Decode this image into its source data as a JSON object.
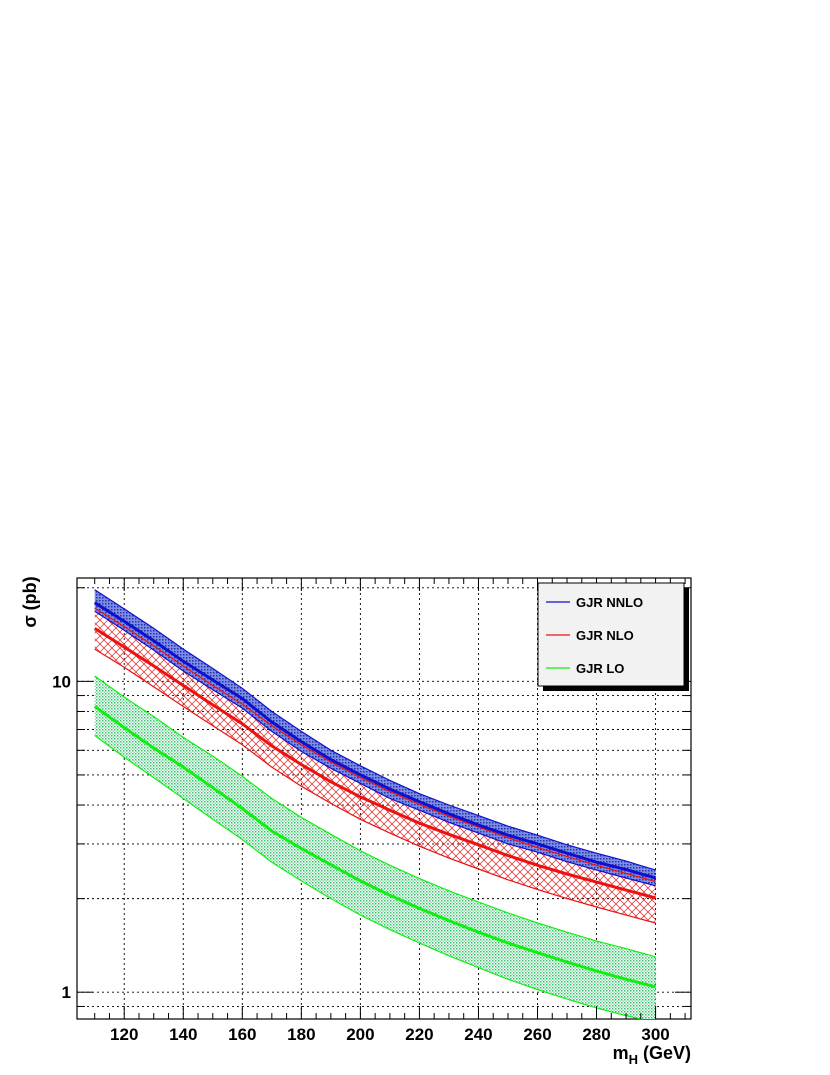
{
  "chart_data": {
    "type": "line",
    "xlabel": "m_H (GeV)",
    "xlabel_main": "m",
    "xlabel_sub": "H",
    "xlabel_suffix": " (GeV)",
    "ylabel": "σ (pb)",
    "xlim": [
      104,
      312
    ],
    "ylim": [
      0.82,
      21.5
    ],
    "yscale": "log",
    "grid": true,
    "legend_position": "top-right",
    "x_ticks": [
      120,
      140,
      160,
      180,
      200,
      220,
      240,
      260,
      280,
      300
    ],
    "y_ticks": [
      1,
      10
    ],
    "x": [
      110,
      120,
      130,
      140,
      150,
      160,
      170,
      180,
      190,
      200,
      210,
      220,
      230,
      240,
      250,
      260,
      270,
      280,
      290,
      300
    ],
    "series": [
      {
        "name": "GJR NNLO",
        "color": "#1010cc",
        "fill": "#3a50d8",
        "band_style": "dense",
        "central": [
          17.9,
          15.6,
          13.5,
          11.6,
          10.1,
          8.8,
          7.4,
          6.4,
          5.6,
          5.0,
          4.5,
          4.1,
          3.75,
          3.45,
          3.2,
          3.0,
          2.8,
          2.62,
          2.48,
          2.33
        ],
        "upper": [
          19.7,
          17.1,
          14.8,
          12.7,
          11.0,
          9.5,
          8.0,
          6.9,
          6.0,
          5.35,
          4.8,
          4.35,
          4.0,
          3.7,
          3.42,
          3.2,
          2.98,
          2.8,
          2.64,
          2.47
        ],
        "lower": [
          16.8,
          14.6,
          12.6,
          10.8,
          9.4,
          8.2,
          6.9,
          5.95,
          5.25,
          4.7,
          4.2,
          3.85,
          3.52,
          3.25,
          3.0,
          2.82,
          2.63,
          2.47,
          2.33,
          2.2
        ]
      },
      {
        "name": "GJR NLO",
        "color": "#ee1111",
        "fill": "#ee4444",
        "band_style": "hatch",
        "central": [
          14.8,
          12.9,
          11.2,
          9.7,
          8.4,
          7.3,
          6.2,
          5.4,
          4.75,
          4.25,
          3.85,
          3.5,
          3.22,
          2.98,
          2.75,
          2.56,
          2.4,
          2.26,
          2.13,
          2.01
        ],
        "upper": [
          17.2,
          15.0,
          13.0,
          11.2,
          9.7,
          8.45,
          7.2,
          6.25,
          5.5,
          4.9,
          4.42,
          4.02,
          3.68,
          3.4,
          3.14,
          2.92,
          2.73,
          2.56,
          2.41,
          2.27
        ],
        "lower": [
          12.7,
          11.1,
          9.6,
          8.3,
          7.2,
          6.25,
          5.3,
          4.6,
          4.05,
          3.6,
          3.25,
          2.95,
          2.7,
          2.49,
          2.3,
          2.14,
          2.0,
          1.88,
          1.77,
          1.67
        ]
      },
      {
        "name": "GJR LO",
        "color": "#11ee11",
        "fill": "#33cc66",
        "band_style": "dots",
        "central": [
          8.3,
          7.1,
          6.1,
          5.3,
          4.55,
          3.9,
          3.3,
          2.9,
          2.57,
          2.28,
          2.05,
          1.86,
          1.7,
          1.56,
          1.44,
          1.34,
          1.25,
          1.17,
          1.1,
          1.04
        ],
        "upper": [
          10.4,
          8.9,
          7.7,
          6.6,
          5.75,
          4.95,
          4.2,
          3.65,
          3.22,
          2.85,
          2.56,
          2.32,
          2.12,
          1.95,
          1.8,
          1.67,
          1.56,
          1.46,
          1.38,
          1.3
        ],
        "lower": [
          6.7,
          5.7,
          4.9,
          4.2,
          3.6,
          3.1,
          2.62,
          2.28,
          2.0,
          1.77,
          1.59,
          1.44,
          1.31,
          1.2,
          1.1,
          1.02,
          0.95,
          0.89,
          0.84,
          0.8
        ]
      }
    ]
  }
}
